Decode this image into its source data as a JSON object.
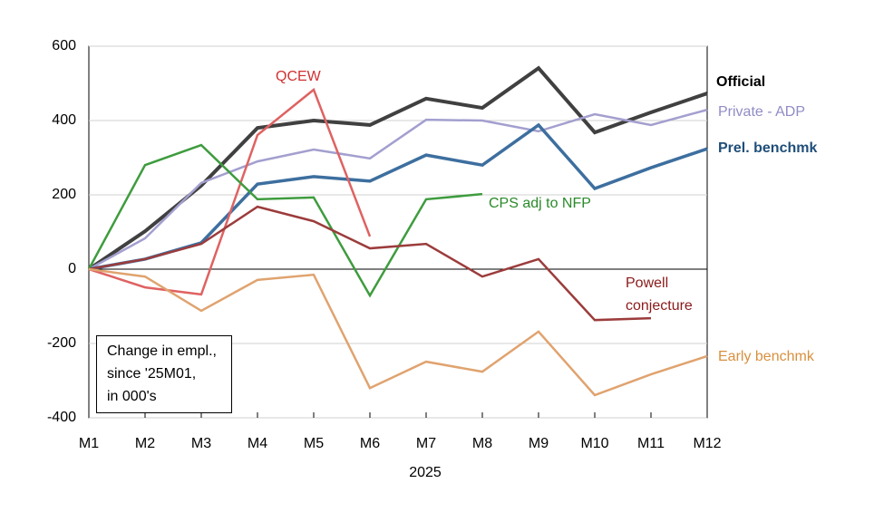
{
  "chart_data": {
    "type": "line",
    "categories": [
      "M1",
      "M2",
      "M3",
      "M4",
      "M5",
      "M6",
      "M7",
      "M8",
      "M9",
      "M10",
      "M11",
      "M12"
    ],
    "x_label": "2025",
    "annotation": [
      "Change in empl.,",
      "since '25M01,",
      "in 000's"
    ],
    "ylim": [
      -400,
      600
    ],
    "yticks": [
      -400,
      -200,
      0,
      200,
      400,
      600
    ],
    "grid": true,
    "series": [
      {
        "name": "Official",
        "color": "#404040",
        "values": [
          0,
          102,
          225,
          380,
          400,
          388,
          459,
          434,
          541,
          368,
          422,
          473
        ]
      },
      {
        "name": "Private - ADP",
        "color": "#a39fcf",
        "values": [
          0,
          83,
          232,
          290,
          322,
          298,
          402,
          400,
          371,
          417,
          388,
          429
        ]
      },
      {
        "name": "Prel. benchmk",
        "color": "#3d6f9f",
        "values": [
          0,
          27,
          71,
          229,
          249,
          237,
          307,
          280,
          388,
          217,
          273,
          324
        ]
      },
      {
        "name": "QCEW",
        "color": "#df6262",
        "values": [
          0,
          -49,
          -68,
          361,
          483,
          88,
          null,
          null,
          null,
          null,
          null,
          null
        ]
      },
      {
        "name": "CPS adj to NFP",
        "color": "#3e9c3e",
        "values": [
          0,
          280,
          334,
          188,
          193,
          -71,
          188,
          202,
          null,
          null,
          null,
          null
        ]
      },
      {
        "name": "Powell conjecture",
        "color": "#9c3c3c",
        "values": [
          0,
          27,
          68,
          168,
          129,
          56,
          68,
          -20,
          27,
          -137,
          -132,
          null
        ]
      },
      {
        "name": "Early benchmk",
        "color": "#e0a36f",
        "values": [
          0,
          -20,
          -112,
          -29,
          -15,
          -320,
          -249,
          -276,
          -168,
          -339,
          -283,
          -234
        ]
      }
    ]
  }
}
